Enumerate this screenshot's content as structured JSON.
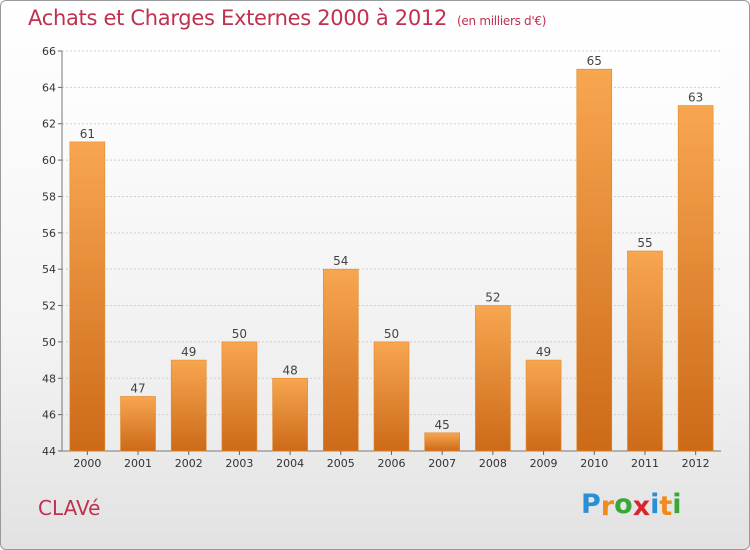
{
  "chart_data": {
    "type": "bar",
    "title": "Achats et Charges Externes 2000 à 2012",
    "subtitle": "(en milliers d'€)",
    "xlabel": "",
    "ylabel": "",
    "categories": [
      "2000",
      "2001",
      "2002",
      "2003",
      "2004",
      "2005",
      "2006",
      "2007",
      "2008",
      "2009",
      "2010",
      "2011",
      "2012"
    ],
    "values": [
      61,
      47,
      49,
      50,
      48,
      54,
      50,
      45,
      52,
      49,
      65,
      55,
      63
    ],
    "ylim": [
      44,
      66
    ],
    "yticks": [
      44,
      46,
      48,
      50,
      52,
      54,
      56,
      58,
      60,
      62,
      64,
      66
    ],
    "grid": true,
    "legend": "none",
    "bar_color_top": "#f8a650",
    "bar_color_bottom": "#cc6a18",
    "label_color": "#444444"
  },
  "footer": {
    "commune": "CLAVé",
    "logo_letters": [
      "P",
      "r",
      "o",
      "x",
      "i",
      "t",
      "i"
    ],
    "logo_colors": [
      "#2b8fd6",
      "#f08a1c",
      "#3aa635",
      "#d8262c",
      "#2b8fd6",
      "#f08a1c",
      "#3aa635"
    ]
  },
  "colors": {
    "title": "#c0304f",
    "grid": "#d0d0d0"
  }
}
